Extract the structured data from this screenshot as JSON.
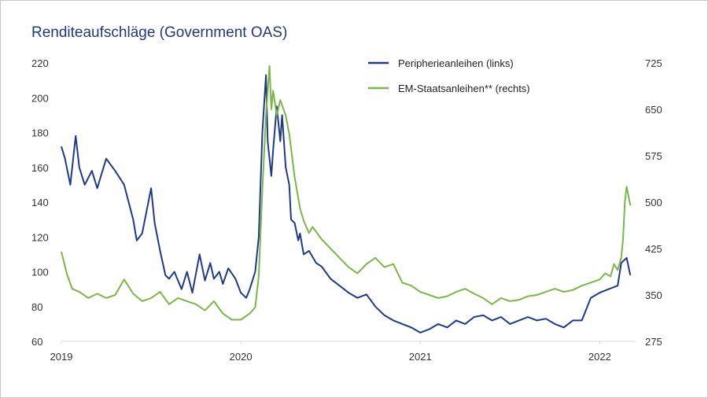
{
  "chart_data": {
    "type": "line",
    "title": "Renditeaufschläge (Government OAS)",
    "xlabel": "",
    "ylabel": "",
    "x_ticks": [
      "2019",
      "2020",
      "2021",
      "2022"
    ],
    "x_range": [
      2019.0,
      2022.2
    ],
    "y_left": {
      "ticks": [
        "60",
        "80",
        "100",
        "120",
        "140",
        "160",
        "180",
        "200",
        "220"
      ],
      "ylim": [
        60,
        220
      ]
    },
    "y_right": {
      "ticks": [
        "275",
        "350",
        "425",
        "500",
        "575",
        "650",
        "725"
      ],
      "ylim": [
        275,
        725
      ]
    },
    "legend_position": "top-right",
    "series": [
      {
        "name": "Peripherieanleihen (links)",
        "axis": "left",
        "color": "#1f3a8a",
        "x": [
          2019.0,
          2019.02,
          2019.05,
          2019.08,
          2019.1,
          2019.13,
          2019.17,
          2019.2,
          2019.25,
          2019.3,
          2019.35,
          2019.4,
          2019.42,
          2019.45,
          2019.5,
          2019.52,
          2019.55,
          2019.58,
          2019.6,
          2019.63,
          2019.67,
          2019.7,
          2019.73,
          2019.77,
          2019.8,
          2019.83,
          2019.85,
          2019.88,
          2019.9,
          2019.93,
          2019.97,
          2020.0,
          2020.03,
          2020.05,
          2020.08,
          2020.1,
          2020.12,
          2020.14,
          2020.15,
          2020.17,
          2020.18,
          2020.2,
          2020.22,
          2020.23,
          2020.25,
          2020.27,
          2020.28,
          2020.3,
          2020.32,
          2020.33,
          2020.35,
          2020.38,
          2020.42,
          2020.45,
          2020.5,
          2020.55,
          2020.6,
          2020.65,
          2020.7,
          2020.75,
          2020.8,
          2020.85,
          2020.9,
          2020.95,
          2021.0,
          2021.05,
          2021.1,
          2021.15,
          2021.2,
          2021.25,
          2021.3,
          2021.35,
          2021.4,
          2021.45,
          2021.5,
          2021.55,
          2021.6,
          2021.65,
          2021.7,
          2021.75,
          2021.8,
          2021.85,
          2021.9,
          2021.95,
          2022.0,
          2022.05,
          2022.1,
          2022.12,
          2022.15,
          2022.17
        ],
        "values": [
          172,
          165,
          150,
          178,
          160,
          150,
          158,
          148,
          165,
          158,
          150,
          130,
          118,
          122,
          148,
          128,
          112,
          98,
          96,
          100,
          90,
          100,
          88,
          110,
          95,
          105,
          96,
          100,
          93,
          102,
          96,
          88,
          85,
          90,
          100,
          120,
          180,
          213,
          175,
          155,
          170,
          195,
          175,
          190,
          160,
          150,
          130,
          128,
          118,
          122,
          110,
          112,
          105,
          103,
          96,
          92,
          88,
          85,
          87,
          80,
          75,
          72,
          70,
          68,
          65,
          67,
          70,
          68,
          72,
          70,
          74,
          75,
          72,
          74,
          70,
          72,
          74,
          72,
          73,
          70,
          68,
          72,
          72,
          85,
          88,
          90,
          92,
          105,
          108,
          98
        ]
      },
      {
        "name": "EM-Staatsanleihen** (rechts)",
        "axis": "right",
        "color": "#7ab648",
        "x": [
          2019.0,
          2019.03,
          2019.06,
          2019.1,
          2019.15,
          2019.2,
          2019.25,
          2019.3,
          2019.35,
          2019.4,
          2019.45,
          2019.5,
          2019.55,
          2019.6,
          2019.65,
          2019.7,
          2019.75,
          2019.8,
          2019.85,
          2019.9,
          2019.95,
          2020.0,
          2020.05,
          2020.08,
          2020.1,
          2020.12,
          2020.14,
          2020.16,
          2020.17,
          2020.18,
          2020.2,
          2020.22,
          2020.25,
          2020.27,
          2020.3,
          2020.33,
          2020.35,
          2020.38,
          2020.4,
          2020.45,
          2020.5,
          2020.55,
          2020.6,
          2020.65,
          2020.7,
          2020.75,
          2020.8,
          2020.85,
          2020.9,
          2020.95,
          2021.0,
          2021.05,
          2021.1,
          2021.15,
          2021.2,
          2021.25,
          2021.3,
          2021.35,
          2021.4,
          2021.45,
          2021.5,
          2021.55,
          2021.6,
          2021.65,
          2021.7,
          2021.75,
          2021.8,
          2021.85,
          2021.9,
          2021.95,
          2022.0,
          2022.03,
          2022.06,
          2022.08,
          2022.1,
          2022.12,
          2022.13,
          2022.14,
          2022.15,
          2022.17
        ],
        "values": [
          420,
          385,
          360,
          355,
          345,
          352,
          345,
          350,
          375,
          352,
          340,
          345,
          355,
          335,
          345,
          340,
          335,
          325,
          340,
          320,
          310,
          310,
          320,
          330,
          380,
          520,
          640,
          720,
          650,
          680,
          640,
          665,
          640,
          610,
          540,
          490,
          470,
          450,
          460,
          440,
          425,
          410,
          395,
          385,
          400,
          410,
          395,
          400,
          370,
          365,
          355,
          350,
          345,
          348,
          355,
          360,
          352,
          345,
          335,
          345,
          340,
          342,
          348,
          350,
          355,
          360,
          355,
          358,
          365,
          370,
          375,
          385,
          380,
          400,
          390,
          410,
          440,
          500,
          525,
          495
        ]
      }
    ]
  }
}
